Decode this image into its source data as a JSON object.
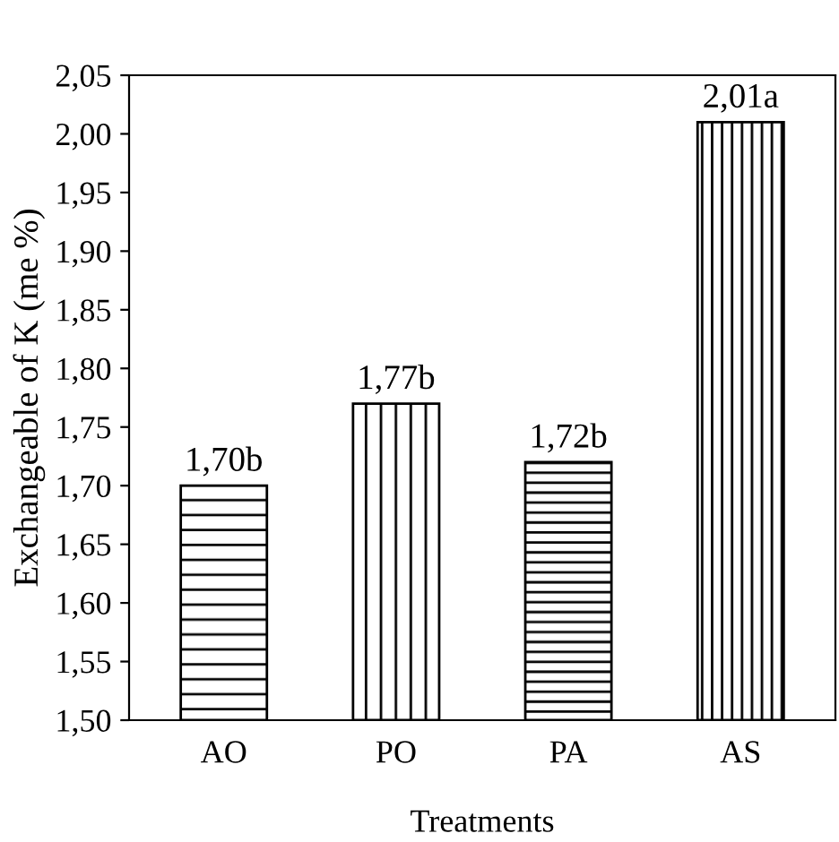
{
  "chart_data": {
    "type": "bar",
    "xlabel": "Treatments",
    "ylabel": "Exchangeable of K (me %)",
    "categories": [
      "AO",
      "PO",
      "PA",
      "AS"
    ],
    "values": [
      1.7,
      1.77,
      1.72,
      2.01
    ],
    "value_labels": [
      "1,70b",
      "1,77b",
      "1,72b",
      "2,01a"
    ],
    "colors": [
      "#000000",
      "#000000",
      "#000000",
      "#000000"
    ],
    "ylim": [
      1.5,
      2.05
    ],
    "yticks": [
      {
        "value": 1.5,
        "label": "1,50"
      },
      {
        "value": 1.55,
        "label": "1,55"
      },
      {
        "value": 1.6,
        "label": "1,60"
      },
      {
        "value": 1.65,
        "label": "1,65"
      },
      {
        "value": 1.7,
        "label": "1,70"
      },
      {
        "value": 1.75,
        "label": "1,75"
      },
      {
        "value": 1.8,
        "label": "1,80"
      },
      {
        "value": 1.85,
        "label": "1,85"
      },
      {
        "value": 1.9,
        "label": "1,90"
      },
      {
        "value": 1.95,
        "label": "1,95"
      },
      {
        "value": 2.0,
        "label": "2,00"
      },
      {
        "value": 2.05,
        "label": "2,05"
      }
    ],
    "grid": false,
    "legend": false
  }
}
